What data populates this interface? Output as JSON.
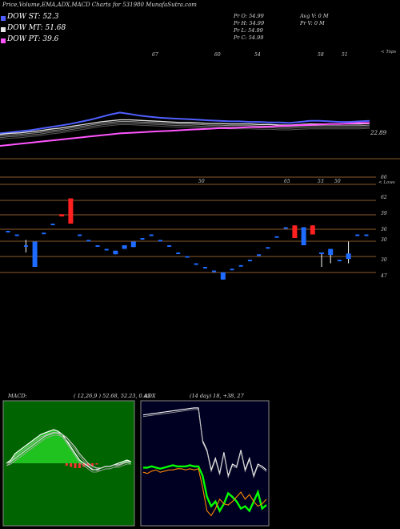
{
  "header": {
    "title": "Price,Volume,EMA,ADX,MACD Charts for 531980",
    "site": "MunafaSutra.com"
  },
  "legend": [
    {
      "label": "DOW ST: 52.3",
      "color": "#6a7bff"
    },
    {
      "label": "DOW MT: 51.68",
      "color": "#e6e6e6"
    },
    {
      "label": "DOW PT: 39.6",
      "color": "#ff55ff"
    }
  ],
  "info": {
    "pr_o": "Pr    O: 54.99",
    "pr_h": "Pr    H: 54.99",
    "pr_l": "Pr    L: 54.99",
    "pr_c": "Pr    C: 54.99",
    "avg_v": "Avg V: 0   M",
    "pr_v": "Pr   V: 0   M"
  },
  "labels": {
    "tops": "< Tops",
    "lows": "< Lows",
    "last_ema": "22.89",
    "macd_title": "MACD:",
    "macd_params": "( 12,26,9 ) 52.68, 52.23, 0.45",
    "adx_title": "ADX",
    "adx_params": "(14  day) 18, +38, 27"
  },
  "chart_data": [
    {
      "type": "line",
      "title": "Price,Volume,EMA,ADX,MACD Charts for 531980",
      "series": [
        {
          "name": "DOW ST: 52.3",
          "color": "#4f5fff",
          "values": [
            22,
            23,
            24,
            25,
            26.5,
            28,
            29.5,
            31,
            33,
            35,
            37.5,
            40,
            42,
            40.5,
            39,
            38,
            37,
            36.5,
            36,
            35.5,
            35,
            34.5,
            34,
            33.5,
            33.5,
            33,
            33,
            32.5,
            32.5,
            32,
            33,
            34,
            34,
            33.5,
            33,
            33,
            33.5,
            34
          ]
        },
        {
          "name": "DOW MT: 51.68",
          "color": "#e6e6e6",
          "values": [
            21,
            22,
            22.5,
            23.5,
            24.5,
            26,
            27,
            28.5,
            30,
            31.5,
            33,
            34,
            35,
            35,
            34.5,
            34,
            33.5,
            33,
            32.5,
            32.5,
            32,
            31.5,
            31.5,
            31,
            31,
            31,
            30.5,
            30.5,
            30,
            30,
            30.5,
            31,
            31,
            31,
            31,
            31,
            31,
            31.5
          ]
        },
        {
          "name": "DOW PT: 39.6",
          "color": "#ff55ff",
          "values": [
            10,
            11,
            12,
            13,
            14,
            15,
            16,
            17,
            18,
            19,
            20,
            21,
            22,
            22.5,
            23,
            23.5,
            24,
            24.5,
            25,
            25.5,
            26,
            26.5,
            27,
            27,
            27.5,
            28,
            28,
            28.5,
            29,
            29.5,
            30,
            30,
            30.5,
            31,
            31,
            31.5,
            32,
            32
          ]
        }
      ],
      "top_labels": [
        "67",
        "60",
        "54",
        "58",
        "51"
      ],
      "last_value_label": "22.89"
    },
    {
      "type": "candlestick",
      "level_labels": [
        "66",
        "62",
        "39",
        "36",
        "30",
        "30",
        "47"
      ],
      "peak_labels": [
        "50",
        "65",
        "53",
        "50"
      ],
      "candles": [
        {
          "o": 36,
          "c": 36,
          "h": 36,
          "l": 36,
          "dir": "flat"
        },
        {
          "o": 35,
          "c": 35,
          "h": 35,
          "l": 35,
          "dir": "flat"
        },
        {
          "o": 32,
          "c": 32,
          "h": 33.5,
          "l": 30,
          "dir": "flat"
        },
        {
          "o": 33,
          "c": 26,
          "h": 33,
          "l": 26,
          "dir": "down"
        },
        {
          "o": 35.5,
          "c": 35.5,
          "h": 35.5,
          "l": 35.5,
          "dir": "flat"
        },
        {
          "o": 38,
          "c": 38,
          "h": 38,
          "l": 38,
          "dir": "flat"
        },
        {
          "o": 40,
          "c": 40.6,
          "h": 40.6,
          "l": 40,
          "dir": "up"
        },
        {
          "o": 38,
          "c": 45,
          "h": 45,
          "l": 38,
          "dir": "up"
        },
        {
          "o": 35,
          "c": 35,
          "h": 35,
          "l": 35,
          "dir": "flat"
        },
        {
          "o": 33.5,
          "c": 33.5,
          "h": 33.5,
          "l": 33.5,
          "dir": "flat"
        },
        {
          "o": 32,
          "c": 32,
          "h": 32,
          "l": 32,
          "dir": "flat"
        },
        {
          "o": 31,
          "c": 31,
          "h": 31,
          "l": 31,
          "dir": "flat"
        },
        {
          "o": 30.5,
          "c": 29.5,
          "h": 30.5,
          "l": 29.5,
          "dir": "down"
        },
        {
          "o": 32,
          "c": 31,
          "h": 32,
          "l": 31,
          "dir": "down"
        },
        {
          "o": 33,
          "c": 31.5,
          "h": 33,
          "l": 31.5,
          "dir": "down"
        },
        {
          "o": 34,
          "c": 34,
          "h": 34,
          "l": 34,
          "dir": "flat"
        },
        {
          "o": 35,
          "c": 35,
          "h": 35,
          "l": 35,
          "dir": "flat"
        },
        {
          "o": 33.5,
          "c": 33.5,
          "h": 33.5,
          "l": 33.5,
          "dir": "flat"
        },
        {
          "o": 32,
          "c": 32,
          "h": 32,
          "l": 32,
          "dir": "flat"
        },
        {
          "o": 30,
          "c": 30,
          "h": 30,
          "l": 30,
          "dir": "flat"
        },
        {
          "o": 29,
          "c": 29,
          "h": 29,
          "l": 29,
          "dir": "flat"
        },
        {
          "o": 27,
          "c": 27,
          "h": 27,
          "l": 27,
          "dir": "flat"
        },
        {
          "o": 26,
          "c": 26,
          "h": 26,
          "l": 26,
          "dir": "flat"
        },
        {
          "o": 25,
          "c": 25,
          "h": 25,
          "l": 25,
          "dir": "flat"
        },
        {
          "o": 24.5,
          "c": 22.5,
          "h": 24.5,
          "l": 22.5,
          "dir": "down"
        },
        {
          "o": 25.5,
          "c": 25.5,
          "h": 25.5,
          "l": 25.5,
          "dir": "flat"
        },
        {
          "o": 26.5,
          "c": 26.5,
          "h": 26.5,
          "l": 26.5,
          "dir": "flat"
        },
        {
          "o": 28,
          "c": 28,
          "h": 28,
          "l": 28,
          "dir": "flat"
        },
        {
          "o": 29.5,
          "c": 29.5,
          "h": 29.5,
          "l": 29.5,
          "dir": "flat"
        },
        {
          "o": 31.5,
          "c": 31.5,
          "h": 31.5,
          "l": 31.5,
          "dir": "flat"
        },
        {
          "o": 34.5,
          "c": 34.5,
          "h": 34.5,
          "l": 34.5,
          "dir": "flat"
        },
        {
          "o": 37,
          "c": 37,
          "h": 37,
          "l": 37,
          "dir": "flat"
        },
        {
          "o": 34,
          "c": 37.5,
          "h": 37.5,
          "l": 34,
          "dir": "up"
        },
        {
          "o": 37,
          "c": 32,
          "h": 37,
          "l": 32,
          "dir": "down"
        },
        {
          "o": 35,
          "c": 37.5,
          "h": 37.5,
          "l": 35,
          "dir": "up"
        },
        {
          "o": 30,
          "c": 29.6,
          "h": 30,
          "l": 26,
          "dir": "down"
        },
        {
          "o": 31,
          "c": 29.3,
          "h": 31,
          "l": 27,
          "dir": "down"
        },
        {
          "o": 28,
          "c": 28,
          "h": 28,
          "l": 28,
          "dir": "flat"
        },
        {
          "o": 29.7,
          "c": 28.2,
          "h": 33,
          "l": 27,
          "dir": "down"
        },
        {
          "o": 35,
          "c": 35,
          "h": 35,
          "l": 35,
          "dir": "flat"
        },
        {
          "o": 35,
          "c": 35,
          "h": 35,
          "l": 35,
          "dir": "flat"
        }
      ]
    },
    {
      "type": "area",
      "title": "MACD:",
      "subtitle": "( 12,26,9 ) 52.68, 52.23, 0.45",
      "series": [
        {
          "name": "MACD",
          "values": [
            0,
            1,
            3,
            4,
            5,
            6,
            7,
            8,
            9,
            9.5,
            10,
            10.5,
            10,
            9,
            7,
            5,
            3,
            1,
            0,
            -1,
            -2,
            -2,
            -1.5,
            -1,
            -1,
            -0.5,
            0,
            0.5,
            1,
            0.5
          ]
        },
        {
          "name": "Signal",
          "values": [
            0,
            0.5,
            1.5,
            2.5,
            3.5,
            4.5,
            5.5,
            6.5,
            7.5,
            8.5,
            9,
            9.5,
            9.5,
            9,
            8,
            6.5,
            5,
            3,
            1.5,
            0,
            -1,
            -1.5,
            -1.5,
            -1,
            -1,
            -0.5,
            -0.5,
            0,
            0.5,
            0.5
          ]
        },
        {
          "name": "Histogram",
          "values": [
            0,
            0.5,
            1.5,
            1.5,
            1.5,
            1.5,
            1.5,
            1.5,
            1.5,
            1,
            1,
            1,
            0.5,
            0,
            -1,
            -1.5,
            -2,
            -2,
            -1.5,
            -1,
            -1,
            -0.5,
            0,
            0,
            0,
            0,
            0.5,
            0.5,
            0.5,
            0
          ]
        }
      ]
    },
    {
      "type": "line",
      "title": "ADX",
      "subtitle": "(14  day) 18, +38, 27",
      "series": [
        {
          "name": "ADX",
          "color": "#ffffff",
          "values": [
            92,
            92.5,
            93,
            93.5,
            94,
            94.5,
            95,
            95.5,
            96,
            96.5,
            97,
            97.5,
            98,
            98,
            70,
            62,
            45,
            55,
            42,
            60,
            40,
            50,
            48,
            62,
            45,
            55,
            40,
            50,
            48,
            45
          ]
        },
        {
          "name": "+DI",
          "color": "#00ff00",
          "values": [
            47,
            47,
            48,
            47,
            46,
            47,
            48,
            49,
            48,
            48,
            48,
            49,
            48,
            48,
            40,
            22,
            14,
            18,
            10,
            16,
            25,
            22,
            18,
            12,
            14,
            10,
            18,
            26,
            12,
            15
          ]
        },
        {
          "name": "-DI",
          "color": "#ff8800",
          "values": [
            43,
            42,
            44,
            45,
            43,
            44,
            45,
            45,
            46,
            46,
            45,
            46,
            45,
            46,
            30,
            10,
            6,
            12,
            20,
            16,
            15,
            18,
            22,
            26,
            20,
            24,
            18,
            14,
            16,
            20
          ]
        }
      ]
    }
  ]
}
